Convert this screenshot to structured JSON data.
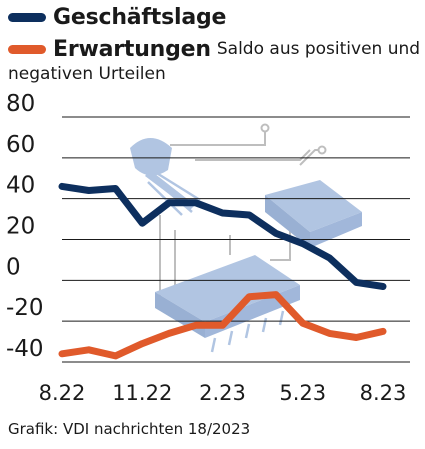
{
  "legend": {
    "series1": "Geschäftslage",
    "series2": "Erwartungen",
    "note_line1": "Saldo aus positiven und",
    "note_line2": "negativen Urteilen"
  },
  "source": "Grafik: VDI nachrichten 18/2023",
  "colors": {
    "series1": "#0d2f5e",
    "series2": "#e05a2b",
    "grid": "#1a1a1a",
    "decor": "#a9bfdf"
  },
  "chart_data": {
    "type": "line",
    "x": [
      "8.22",
      "9.22",
      "10.22",
      "11.22",
      "12.22",
      "1.23",
      "2.23",
      "3.23",
      "4.23",
      "5.23",
      "6.23",
      "7.23",
      "8.23"
    ],
    "x_tick_labels": [
      "8.22",
      "11.22",
      "2.23",
      "5.23",
      "8.23"
    ],
    "y_ticks": [
      80,
      60,
      40,
      20,
      0,
      -20,
      -40
    ],
    "ylim": [
      -40,
      80
    ],
    "series": [
      {
        "name": "Geschäftslage",
        "values": [
          46,
          44,
          45,
          28,
          38,
          38,
          33,
          32,
          23,
          18,
          11,
          -1,
          -3
        ]
      },
      {
        "name": "Erwartungen",
        "values": [
          -36,
          -34,
          -37,
          -31,
          -26,
          -22,
          -22,
          -8,
          -7,
          -21,
          -26,
          -28,
          -25
        ]
      }
    ],
    "grid": true
  }
}
